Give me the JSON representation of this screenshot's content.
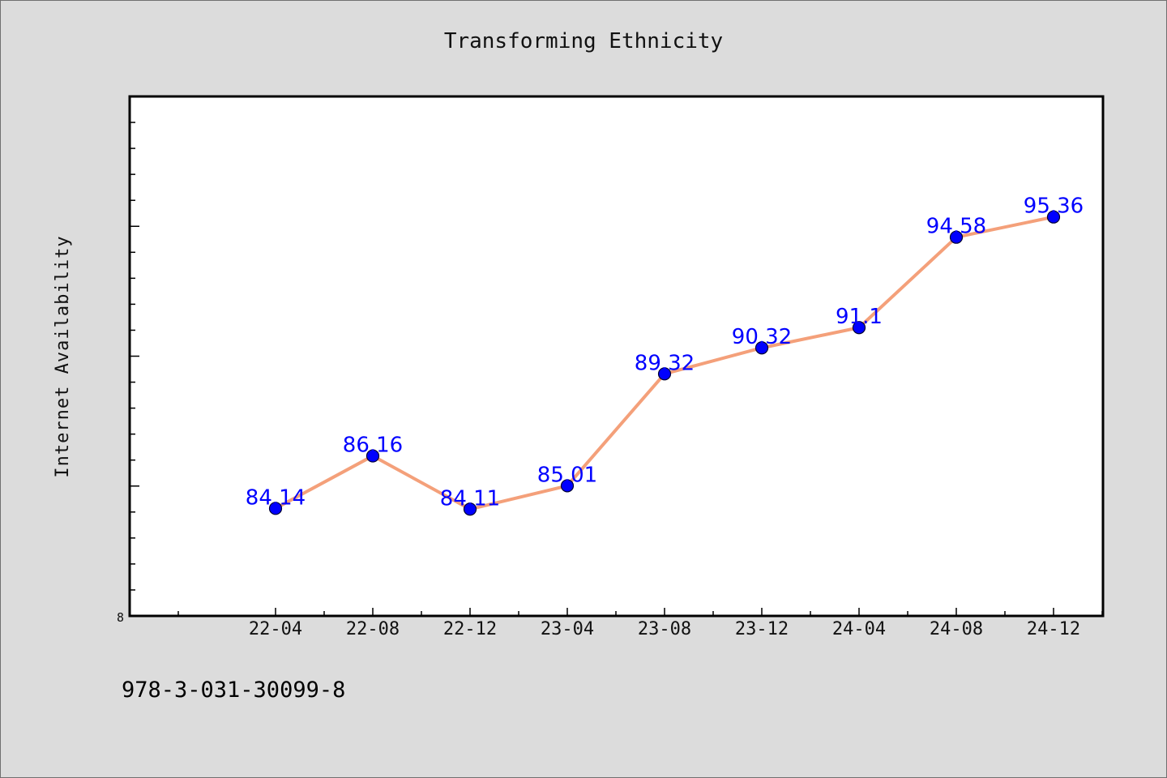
{
  "colors": {
    "background": "#dcdcdc",
    "plot_background": "#ffffff",
    "line": "#f4a07a",
    "marker": "#0000ff",
    "data_label": "#0000ff"
  },
  "footer": {
    "text": "978-3-031-30099-8"
  },
  "chart_data": {
    "type": "line",
    "title": "Transforming Ethnicity",
    "xlabel": "",
    "ylabel": "Internet Availability",
    "categories": [
      "22-04",
      "22-08",
      "22-12",
      "23-04",
      "23-08",
      "23-12",
      "24-04",
      "24-08",
      "24-12"
    ],
    "series": [
      {
        "values": [
          84.14,
          86.16,
          84.11,
          85.01,
          89.32,
          90.32,
          91.1,
          94.58,
          95.36
        ],
        "labels": [
          "84.14",
          "86.16",
          "84.11",
          "85.01",
          "89.32",
          "90.32",
          "91.1",
          "94.58",
          "95.36"
        ]
      }
    ],
    "ylim": [
      80,
      100
    ],
    "y_tick_labels": [
      "8"
    ],
    "grid": false,
    "legend": "none"
  }
}
